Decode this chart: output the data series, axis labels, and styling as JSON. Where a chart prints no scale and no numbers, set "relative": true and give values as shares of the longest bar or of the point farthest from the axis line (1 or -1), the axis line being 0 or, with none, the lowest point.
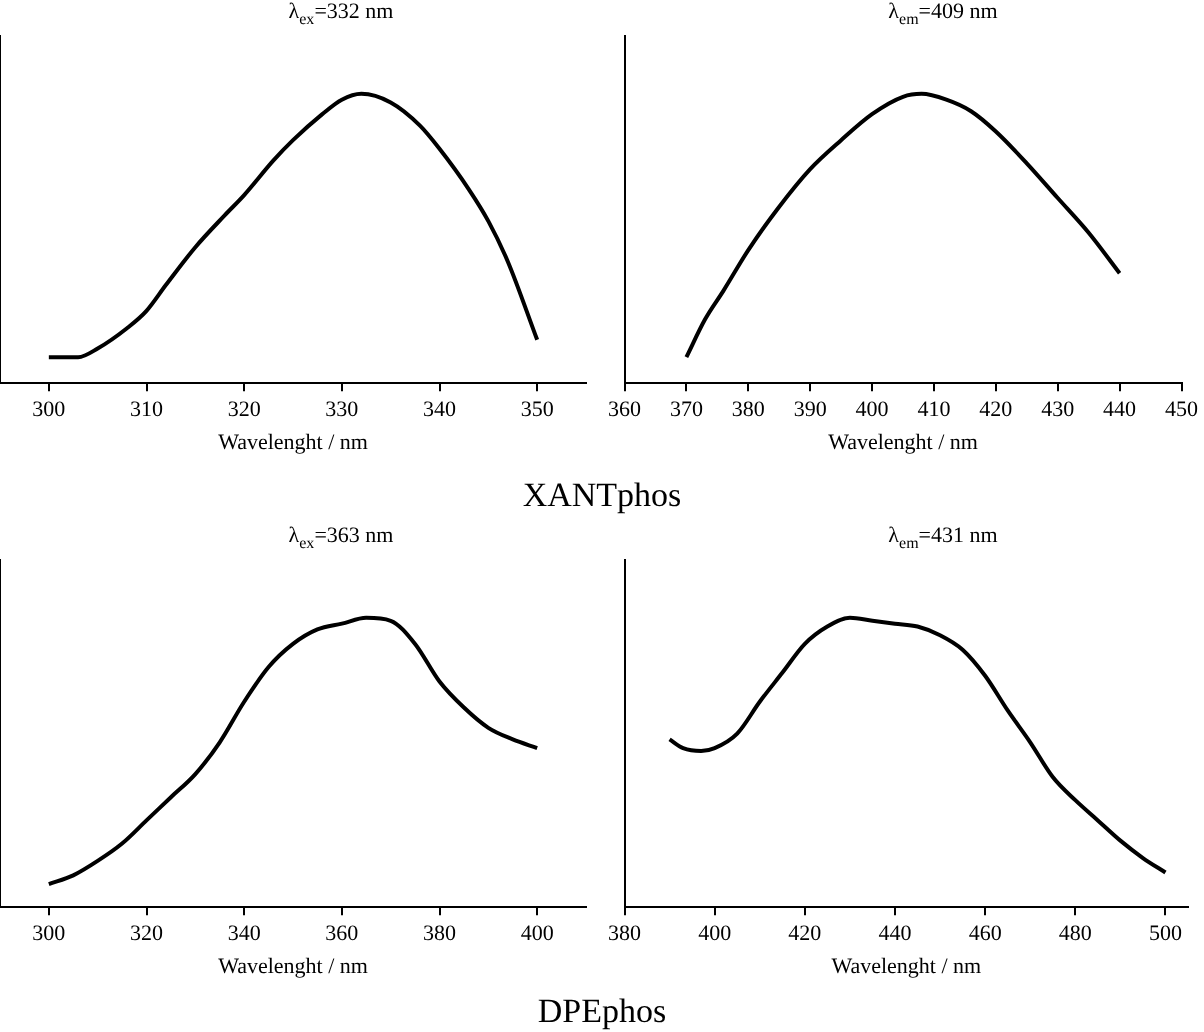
{
  "chart_data": [
    {
      "type": "line",
      "title": "λ$_{ex}$=332 nm",
      "xlabel": "Wavelenght / nm",
      "relative": true,
      "xlim": [
        295,
        355
      ],
      "xticks": [
        300,
        310,
        320,
        330,
        340,
        350
      ],
      "marker": "none",
      "grid": false,
      "legend": false,
      "annotations": [
        "XANTphos"
      ],
      "series": [
        {
          "color": "#000000",
          "x": [
            300,
            303,
            305,
            308,
            310,
            312,
            315,
            318,
            320,
            323,
            325,
            328,
            330,
            332,
            335,
            338,
            340,
            343,
            345,
            347,
            350
          ],
          "values": [
            0.09,
            0.09,
            0.12,
            0.19,
            0.25,
            0.34,
            0.47,
            0.58,
            0.65,
            0.77,
            0.84,
            0.93,
            0.98,
            1,
            0.97,
            0.89,
            0.81,
            0.67,
            0.56,
            0.42,
            0.15
          ]
        }
      ]
    },
    {
      "type": "line",
      "title": "λ$_{em}$=409 nm",
      "xlabel": "Wavelenght / nm",
      "relative": true,
      "xlim": [
        360,
        450
      ],
      "xticks": [
        360,
        370,
        380,
        390,
        400,
        410,
        420,
        430,
        440,
        450
      ],
      "marker": "none",
      "grid": false,
      "legend": false,
      "series": [
        {
          "color": "#000000",
          "x": [
            370,
            373,
            376,
            380,
            385,
            390,
            395,
            400,
            405,
            408,
            412,
            416,
            420,
            425,
            430,
            435,
            440
          ],
          "values": [
            0.09,
            0.22,
            0.32,
            0.46,
            0.61,
            0.74,
            0.84,
            0.93,
            0.99,
            1,
            0.98,
            0.94,
            0.87,
            0.76,
            0.64,
            0.52,
            0.38
          ]
        }
      ]
    },
    {
      "type": "line",
      "title": "λ$_{ex}$=363 nm",
      "xlabel": "Wavelenght / nm",
      "relative": true,
      "xlim": [
        290,
        410
      ],
      "xticks": [
        300,
        320,
        340,
        360,
        380,
        400
      ],
      "marker": "none",
      "grid": false,
      "legend": false,
      "annotations": [
        "DPEphos"
      ],
      "series": [
        {
          "color": "#000000",
          "x": [
            300,
            305,
            310,
            315,
            320,
            325,
            330,
            335,
            340,
            345,
            350,
            355,
            360,
            365,
            370,
            375,
            380,
            385,
            390,
            395,
            400
          ],
          "values": [
            0.08,
            0.11,
            0.16,
            0.22,
            0.3,
            0.38,
            0.46,
            0.57,
            0.71,
            0.83,
            0.91,
            0.96,
            0.98,
            1,
            0.99,
            0.91,
            0.78,
            0.69,
            0.62,
            0.58,
            0.55
          ]
        }
      ]
    },
    {
      "type": "line",
      "title": "λ$_{em}$=431 nm",
      "xlabel": "Wavelenght / nm",
      "relative": true,
      "xlim": [
        380,
        505
      ],
      "xticks": [
        380,
        400,
        420,
        440,
        460,
        480,
        500
      ],
      "marker": "none",
      "grid": false,
      "legend": false,
      "series": [
        {
          "color": "#000000",
          "x": [
            390,
            393,
            397,
            400,
            405,
            410,
            415,
            420,
            425,
            430,
            435,
            440,
            445,
            450,
            455,
            460,
            465,
            470,
            475,
            480,
            485,
            490,
            495,
            500
          ],
          "values": [
            0.58,
            0.55,
            0.54,
            0.55,
            0.6,
            0.71,
            0.81,
            0.91,
            0.97,
            1,
            0.99,
            0.98,
            0.97,
            0.94,
            0.89,
            0.8,
            0.68,
            0.57,
            0.45,
            0.37,
            0.3,
            0.23,
            0.17,
            0.12
          ]
        }
      ]
    }
  ]
}
